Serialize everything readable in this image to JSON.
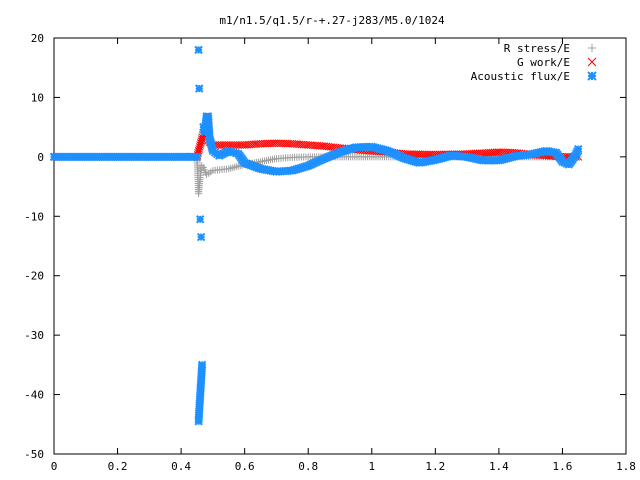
{
  "chart_data": {
    "type": "scatter",
    "title": "m1/n1.5/q1.5/r-+.27-j283/M5.0/1024",
    "xlabel": "",
    "ylabel": "",
    "xlim": [
      0,
      1.8
    ],
    "ylim": [
      -50,
      20
    ],
    "x_ticks": [
      "0",
      "0.2",
      "0.4",
      "0.6",
      "0.8",
      "1",
      "1.2",
      "1.4",
      "1.6",
      "1.8"
    ],
    "y_ticks": [
      "20",
      "10",
      "0",
      "-10",
      "-20",
      "-30",
      "-40",
      "-50"
    ],
    "legend_position": "top-right",
    "grid": false,
    "series": [
      {
        "name": "R stress/E",
        "marker": "+",
        "color": "#a0a0a0",
        "points": [
          [
            0.0,
            0.0
          ],
          [
            0.1,
            0.0
          ],
          [
            0.2,
            0.0
          ],
          [
            0.3,
            0.0
          ],
          [
            0.4,
            0.0
          ],
          [
            0.45,
            0.0
          ],
          [
            0.455,
            -6.2
          ],
          [
            0.46,
            -3.5
          ],
          [
            0.465,
            -1.5
          ],
          [
            0.47,
            -1.8
          ],
          [
            0.48,
            -3.0
          ],
          [
            0.5,
            -2.3
          ],
          [
            0.55,
            -2.0
          ],
          [
            0.6,
            -1.3
          ],
          [
            0.65,
            -0.8
          ],
          [
            0.7,
            -0.3
          ],
          [
            0.75,
            -0.1
          ],
          [
            0.8,
            0.0
          ],
          [
            0.9,
            0.0
          ],
          [
            1.0,
            0.0
          ],
          [
            1.1,
            0.0
          ],
          [
            1.2,
            0.0
          ],
          [
            1.3,
            0.0
          ],
          [
            1.4,
            0.0
          ],
          [
            1.5,
            0.0
          ],
          [
            1.6,
            0.0
          ],
          [
            1.65,
            0.0
          ]
        ]
      },
      {
        "name": "G work/E",
        "marker": "x",
        "color": "#ff0000",
        "points": [
          [
            0.0,
            0.0
          ],
          [
            0.1,
            0.0
          ],
          [
            0.2,
            0.0
          ],
          [
            0.3,
            0.0
          ],
          [
            0.4,
            0.0
          ],
          [
            0.45,
            0.0
          ],
          [
            0.46,
            2.0
          ],
          [
            0.47,
            4.0
          ],
          [
            0.48,
            3.0
          ],
          [
            0.5,
            2.0
          ],
          [
            0.55,
            2.0
          ],
          [
            0.6,
            2.0
          ],
          [
            0.65,
            2.2
          ],
          [
            0.7,
            2.3
          ],
          [
            0.75,
            2.2
          ],
          [
            0.8,
            2.0
          ],
          [
            0.85,
            1.8
          ],
          [
            0.9,
            1.5
          ],
          [
            0.95,
            1.2
          ],
          [
            1.0,
            1.0
          ],
          [
            1.05,
            0.8
          ],
          [
            1.1,
            0.5
          ],
          [
            1.2,
            0.4
          ],
          [
            1.3,
            0.5
          ],
          [
            1.4,
            0.8
          ],
          [
            1.45,
            0.7
          ],
          [
            1.5,
            0.4
          ],
          [
            1.55,
            0.2
          ],
          [
            1.6,
            0.0
          ],
          [
            1.65,
            0.0
          ]
        ]
      },
      {
        "name": "Acoustic flux/E",
        "marker": "*",
        "color": "#1e90ff",
        "points": [
          [
            0.0,
            0.0
          ],
          [
            0.1,
            0.0
          ],
          [
            0.2,
            0.0
          ],
          [
            0.3,
            0.0
          ],
          [
            0.4,
            0.0
          ],
          [
            0.45,
            0.0
          ],
          [
            0.455,
            18.0
          ],
          [
            0.457,
            11.5
          ],
          [
            0.46,
            -10.5
          ],
          [
            0.463,
            -13.5
          ],
          [
            0.466,
            -35.0
          ],
          [
            0.455,
            -44.5
          ],
          [
            0.47,
            5.0
          ],
          [
            0.475,
            4.2
          ],
          [
            0.48,
            6.8
          ],
          [
            0.485,
            6.8
          ],
          [
            0.49,
            3.0
          ],
          [
            0.5,
            1.0
          ],
          [
            0.52,
            0.2
          ],
          [
            0.55,
            1.0
          ],
          [
            0.58,
            0.5
          ],
          [
            0.6,
            -1.0
          ],
          [
            0.65,
            -2.0
          ],
          [
            0.7,
            -2.5
          ],
          [
            0.75,
            -2.3
          ],
          [
            0.8,
            -1.5
          ],
          [
            0.85,
            -0.3
          ],
          [
            0.9,
            0.8
          ],
          [
            0.95,
            1.6
          ],
          [
            1.0,
            1.7
          ],
          [
            1.05,
            1.0
          ],
          [
            1.1,
            -0.2
          ],
          [
            1.15,
            -1.0
          ],
          [
            1.2,
            -0.5
          ],
          [
            1.25,
            0.2
          ],
          [
            1.3,
            0.0
          ],
          [
            1.35,
            -0.6
          ],
          [
            1.4,
            -0.6
          ],
          [
            1.45,
            0.1
          ],
          [
            1.5,
            0.4
          ],
          [
            1.55,
            1.0
          ],
          [
            1.58,
            0.7
          ],
          [
            1.6,
            -0.8
          ],
          [
            1.62,
            -1.3
          ],
          [
            1.64,
            0.2
          ],
          [
            1.65,
            1.3
          ]
        ]
      }
    ]
  }
}
